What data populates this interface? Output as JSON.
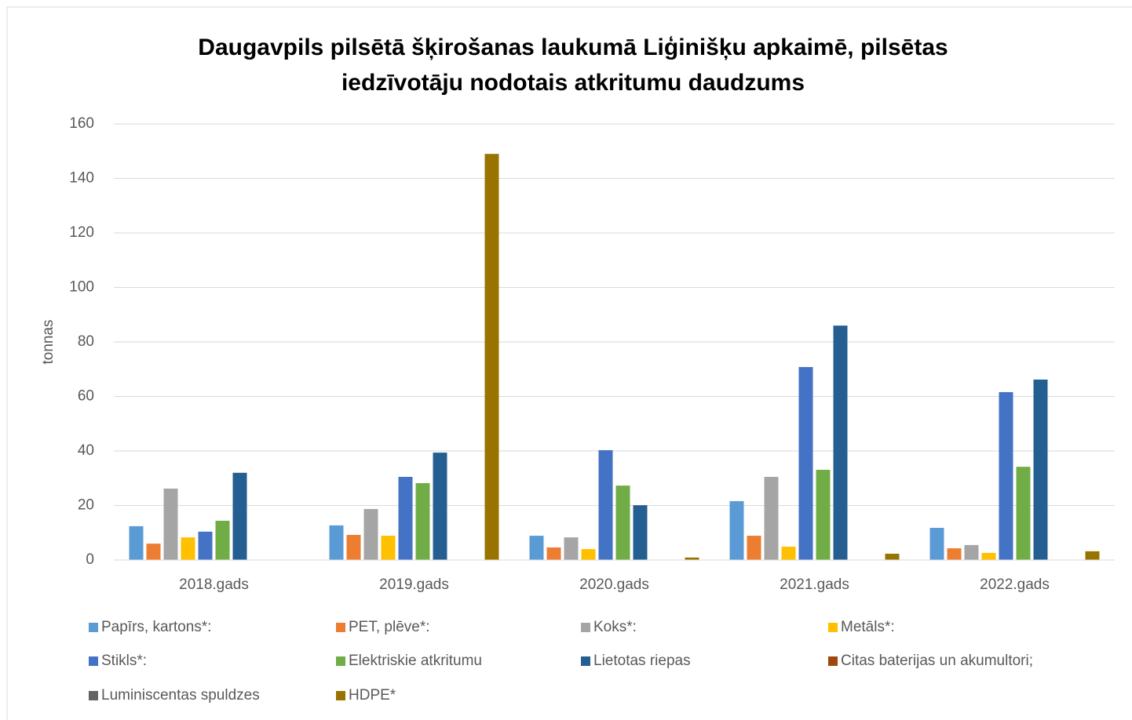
{
  "chart_data": {
    "type": "bar",
    "title": "Daugavpils pilsētā šķirošanas laukumā Liģinišķu apkaimē, pilsētas iedzīvotāju nodotais atkritumu daudzums",
    "y_label": "tonnas",
    "categories": [
      "2018.gads",
      "2019.gads",
      "2020.gads",
      "2021.gads",
      "2022.gads"
    ],
    "series": [
      {
        "name": "Papīrs, kartons*:",
        "color": "#5b9bd5",
        "values": [
          12.4,
          12.7,
          8.9,
          21.6,
          11.8
        ]
      },
      {
        "name": "PET, plēve*:",
        "color": "#ed7d31",
        "values": [
          6,
          9.2,
          4.6,
          8.9,
          4.3
        ]
      },
      {
        "name": "Koks*:",
        "color": "#a5a5a5",
        "values": [
          26.2,
          18.7,
          8.3,
          30.5,
          5.5
        ]
      },
      {
        "name": "Metāls*:",
        "color": "#ffc000",
        "values": [
          8.3,
          8.9,
          4,
          4.9,
          2.6
        ]
      },
      {
        "name": "Stikls*:",
        "color": "#4472c4",
        "values": [
          10.4,
          30.5,
          40.3,
          70.8,
          61.6
        ]
      },
      {
        "name": "Elektriskie atkritumu",
        "color": "#70ad47",
        "values": [
          14.4,
          28.2,
          27.3,
          33.1,
          34.2
        ]
      },
      {
        "name": "Lietotas riepas",
        "color": "#255e91",
        "values": [
          32,
          39.4,
          20.1,
          86,
          66.2
        ]
      },
      {
        "name": "Citas baterijas un akumultori;",
        "color": "#9e480e",
        "values": [
          0,
          0,
          0,
          0,
          0
        ]
      },
      {
        "name": "Luminiscentas spuldzes",
        "color": "#636363",
        "values": [
          0,
          0,
          0,
          0,
          0
        ]
      },
      {
        "name": "HDPE*",
        "color": "#997300",
        "values": [
          0,
          149,
          0.9,
          2.3,
          3.2
        ]
      }
    ],
    "ylim": [
      0,
      160
    ],
    "yticks": [
      0,
      20,
      40,
      60,
      80,
      100,
      120,
      140,
      160
    ],
    "grid": true,
    "legend": "bottom"
  }
}
